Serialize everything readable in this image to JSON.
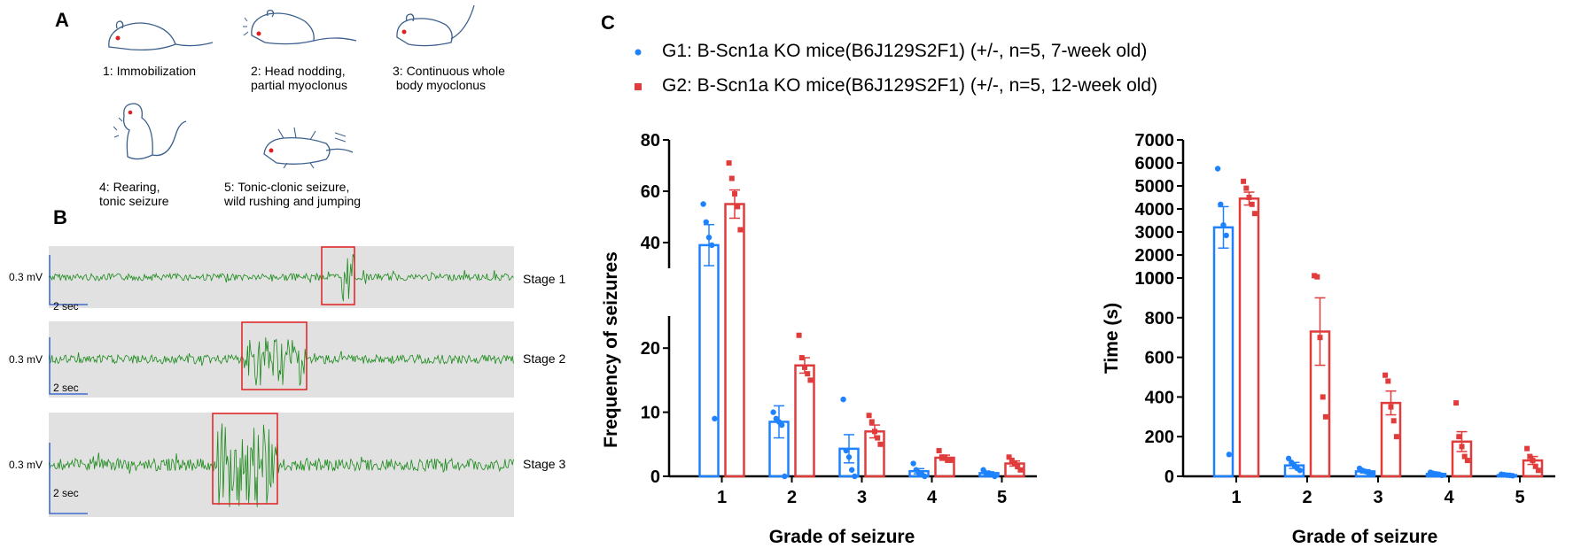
{
  "panel_labels": {
    "a": "A",
    "b": "B",
    "c": "C"
  },
  "seizure_stages": [
    {
      "caption": "1: Immobilization"
    },
    {
      "caption": "2: Head nodding,\npartial myoclonus"
    },
    {
      "caption": "3: Continuous whole\n body myoclonus"
    },
    {
      "caption": "4: Rearing,\ntonic seizure"
    },
    {
      "caption": "5: Tonic-clonic seizure,\nwild rushing and jumping"
    }
  ],
  "eeg": [
    {
      "stage": "Stage 1",
      "voltage": "0.3 mV",
      "time": "2 sec"
    },
    {
      "stage": "Stage 2",
      "voltage": "0.3 mV",
      "time": "2 sec"
    },
    {
      "stage": "Stage 3",
      "voltage": "0.3 mV",
      "time": "2 sec"
    }
  ],
  "legend": [
    {
      "label": "G1: B-Scn1a KO mice(B6J129S2F1) (+/-, n=5, 7-week old)",
      "color": "#1e82ff",
      "marker": "circle"
    },
    {
      "label": "G2: B-Scn1a KO mice(B6J129S2F1) (+/-, n=5, 12-week old)",
      "color": "#e03c3c",
      "marker": "square"
    }
  ],
  "colors": {
    "g1": "#1e82ff",
    "g2": "#e03c3c",
    "eeg": "#1a8a1a",
    "highlight": "#e02020",
    "scale": "#2255cc"
  },
  "chart_data": [
    {
      "type": "bar",
      "xlabel": "Grade of seizure",
      "ylabel": "Frequency of seizures",
      "categories": [
        "1",
        "2",
        "3",
        "4",
        "5"
      ],
      "broken_axis": {
        "lower": [
          0,
          25
        ],
        "upper": [
          30,
          80
        ]
      },
      "lower_ticks": [
        0,
        10,
        20
      ],
      "upper_ticks": [
        40,
        60,
        80
      ],
      "series": [
        {
          "name": "G1",
          "values": [
            39,
            8.5,
            4.3,
            0.8,
            0.5
          ],
          "sem": [
            8,
            2.5,
            2.2,
            0.4,
            0.2
          ],
          "points": [
            [
              55,
              48,
              42,
              39,
              9
            ],
            [
              10,
              9,
              8.5,
              8,
              0
            ],
            [
              12,
              4,
              3,
              1,
              0
            ],
            [
              2,
              1,
              0.5,
              0.3,
              0
            ],
            [
              1,
              0.5,
              0.5,
              0.3,
              0
            ]
          ]
        },
        {
          "name": "G2",
          "values": [
            55,
            17.3,
            7,
            2.9,
            2
          ],
          "sem": [
            5.5,
            1.2,
            1,
            0.4,
            0.4
          ],
          "points": [
            [
              71,
              65,
              59,
              54,
              45
            ],
            [
              22,
              18.5,
              17,
              16,
              15
            ],
            [
              9.5,
              8.5,
              7,
              6,
              5
            ],
            [
              4,
              3,
              3,
              2.5,
              2.5
            ],
            [
              3,
              2.5,
              2,
              1.5,
              1
            ]
          ]
        }
      ]
    },
    {
      "type": "bar",
      "xlabel": "Grade of seizure",
      "ylabel": "Time (s)",
      "categories": [
        "1",
        "2",
        "3",
        "4",
        "5"
      ],
      "broken_axis": {
        "lower": [
          0,
          1000
        ],
        "upper": [
          1000,
          7000
        ]
      },
      "lower_ticks": [
        0,
        200,
        400,
        600,
        800,
        1000
      ],
      "upper_ticks": [
        1000,
        2000,
        3000,
        4000,
        5000,
        6000,
        7000
      ],
      "series": [
        {
          "name": "G1",
          "values": [
            3200,
            55,
            25,
            12,
            6
          ],
          "sem": [
            900,
            15,
            8,
            4,
            2
          ],
          "points": [
            [
              5750,
              4200,
              3300,
              2850,
              110
            ],
            [
              90,
              70,
              55,
              40,
              30
            ],
            [
              40,
              30,
              25,
              20,
              15
            ],
            [
              20,
              15,
              12,
              10,
              5
            ],
            [
              10,
              8,
              6,
              5,
              3
            ]
          ]
        },
        {
          "name": "G2",
          "values": [
            4450,
            730,
            370,
            175,
            80
          ],
          "sem": [
            280,
            170,
            60,
            50,
            20
          ],
          "points": [
            [
              5200,
              4900,
              4500,
              4200,
              3800
            ],
            [
              1100,
              1050,
              700,
              400,
              300
            ],
            [
              510,
              480,
              350,
              280,
              200
            ],
            [
              370,
              200,
              150,
              100,
              80
            ],
            [
              140,
              100,
              80,
              50,
              30
            ]
          ]
        }
      ]
    }
  ]
}
